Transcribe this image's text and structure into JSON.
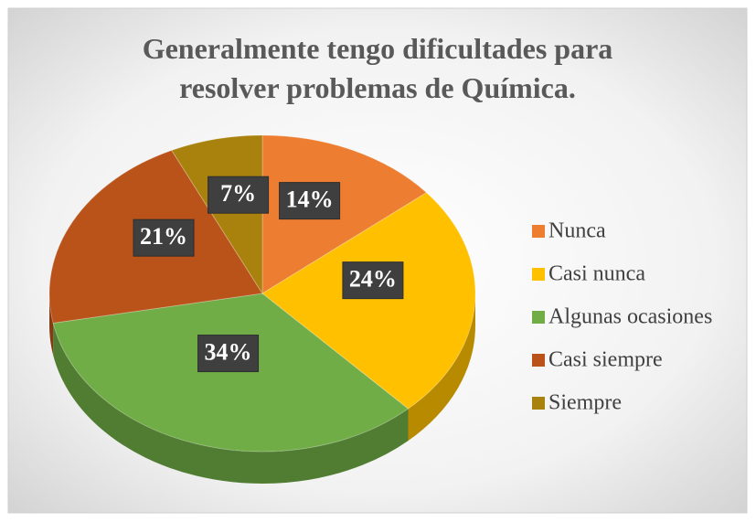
{
  "chart_data": {
    "type": "pie",
    "title": "Generalmente tengo dificultades para resolver problemas de Química.",
    "categories": [
      "Nunca",
      "Casi nunca",
      "Algunas ocasiones",
      "Casi siempre",
      "Siempre"
    ],
    "values": [
      14,
      24,
      34,
      21,
      7
    ],
    "value_labels": [
      "14%",
      "24%",
      "34%",
      "21%",
      "7%"
    ],
    "colors": [
      "#ed7d31",
      "#ffc000",
      "#70ad47",
      "#b9531a",
      "#a8820c"
    ],
    "legend": "right"
  }
}
